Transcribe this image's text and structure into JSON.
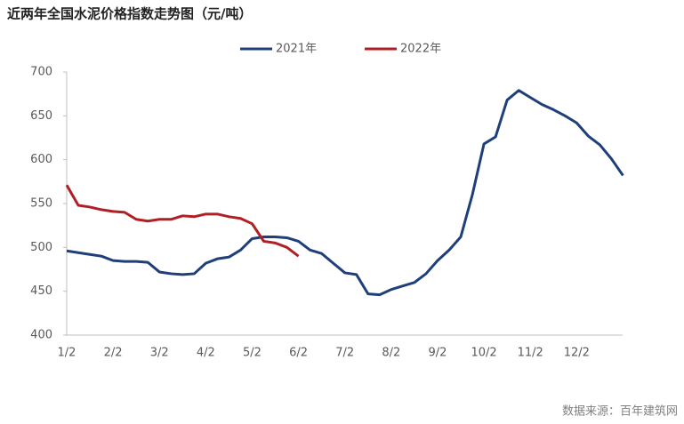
{
  "chart_data": {
    "type": "line",
    "title": "近两年全国水泥价格指数走势图（元/吨）",
    "source": "数据来源：百年建筑网",
    "categories": [
      "1/2",
      null,
      null,
      null,
      "2/2",
      null,
      null,
      null,
      "3/2",
      null,
      null,
      null,
      "4/2",
      null,
      null,
      null,
      "5/2",
      null,
      null,
      null,
      "6/2",
      null,
      null,
      null,
      "7/2",
      null,
      null,
      null,
      "8/2",
      null,
      null,
      null,
      "9/2",
      null,
      null,
      null,
      "10/2",
      null,
      null,
      null,
      "11/2",
      null,
      null,
      null,
      "12/2",
      null,
      null,
      null,
      null
    ],
    "series": [
      {
        "name": "2021年",
        "color": "#1f3f7a",
        "values": [
          496,
          494,
          492,
          490,
          485,
          484,
          484,
          483,
          472,
          470,
          469,
          470,
          482,
          487,
          489,
          497,
          510,
          512,
          512,
          511,
          507,
          497,
          493,
          482,
          471,
          469,
          447,
          446,
          452,
          456,
          460,
          470,
          485,
          497,
          512,
          560,
          618,
          626,
          668,
          679,
          671,
          663,
          657,
          650,
          642,
          627,
          617,
          601,
          582
        ]
      },
      {
        "name": "2022年",
        "color": "#b01f24",
        "values": [
          571,
          548,
          546,
          543,
          541,
          540,
          532,
          530,
          532,
          532,
          536,
          535,
          538,
          538,
          535,
          533,
          527,
          507,
          505,
          500,
          490,
          null,
          null,
          null,
          null,
          null,
          null,
          null,
          null,
          null,
          null,
          null,
          null,
          null,
          null,
          null,
          null,
          null,
          null,
          null,
          null,
          null,
          null,
          null,
          null,
          null,
          null,
          null,
          null
        ]
      }
    ],
    "ylim": [
      400,
      700
    ],
    "yticks": [
      400,
      450,
      500,
      550,
      600,
      650,
      700
    ],
    "grid": false
  }
}
